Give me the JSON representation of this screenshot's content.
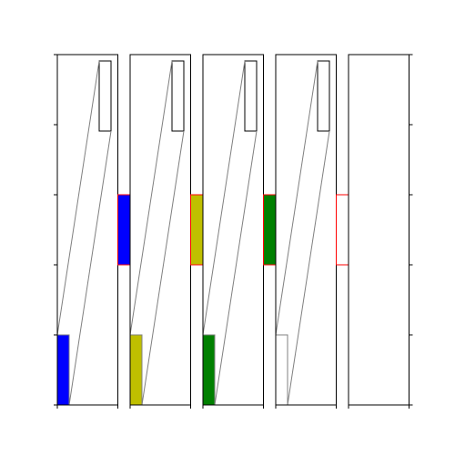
{
  "colors": [
    "#0000ff",
    "#bfbf00",
    "#008000",
    "none"
  ]
}
